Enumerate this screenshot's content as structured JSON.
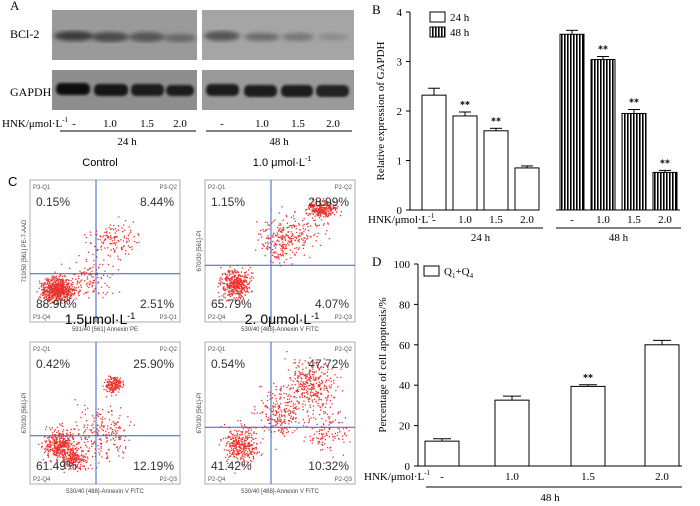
{
  "panelA": {
    "letter": "A",
    "bcl2_label": "BCl-2",
    "gapdh_label": "GAPDH",
    "hnk_label": "HNK/μmol·L",
    "hnk_sup": "-1",
    "lanes": [
      "-",
      "1.0",
      "1.5",
      "2.0"
    ],
    "group_24": "24 h",
    "group_48": "48 h"
  },
  "chart_data": [
    {
      "id": "B",
      "type": "bar",
      "letter": "B",
      "ylabel": "Relative expression of GAPDH",
      "ylim": [
        0,
        4
      ],
      "yticks": [
        "0",
        "1",
        "2",
        "3",
        "4"
      ],
      "xlabel_prefix": "HNK/μmol·L",
      "xlabel_sup": "-1",
      "categories": [
        "-",
        "1.0",
        "1.5",
        "2.0"
      ],
      "groups": [
        "24 h",
        "48 h"
      ],
      "legend": [
        "24 h",
        "48 h"
      ],
      "series": [
        {
          "name": "24 h",
          "values": [
            2.32,
            1.9,
            1.6,
            0.85
          ],
          "errors": [
            0.14,
            0.08,
            0.05,
            0.04
          ],
          "sig": [
            "",
            "**",
            "**",
            ""
          ]
        },
        {
          "name": "48 h",
          "values": [
            3.55,
            3.04,
            1.95,
            0.76
          ],
          "errors": [
            0.08,
            0.06,
            0.08,
            0.04
          ],
          "sig": [
            "",
            "**",
            "**",
            "**"
          ]
        }
      ]
    },
    {
      "id": "C",
      "type": "scatter",
      "letter": "C",
      "plots": [
        {
          "title": "Control",
          "q1": "0.15%",
          "q2": "8.44%",
          "q3": "2.51%",
          "q4": "88.90%",
          "tl": "P3-Q1",
          "tr": "P3-Q2",
          "bl": "P3-Q4",
          "br": "P3-Q1",
          "xlabel": "591/40 [561] Annexin PE",
          "ylabel": "710/50 [561] PE-7-AAD"
        },
        {
          "title": "1.0 μmol·L",
          "title_sup": "-1",
          "q1": "1.15%",
          "q2": "28.99%",
          "q3": "4.07%",
          "q4": "65.79%",
          "tl": "P2-Q1",
          "tr": "P2-Q2",
          "bl": "P2-Q4",
          "br": "P2-Q3",
          "xlabel": "530/40 [488]-Annexin V FITC",
          "ylabel": "670/30 [561]-PI"
        },
        {
          "title": "1.5μmol·L",
          "title_sup": "-1",
          "q1": "0.42%",
          "q2": "25.90%",
          "q3": "12.19%",
          "q4": "61.49%",
          "tl": "P2-Q1",
          "tr": "P2-Q2",
          "bl": "P2-Q4",
          "br": "P2-Q3",
          "xlabel": "530/40 [488]-Annexin V FITC",
          "ylabel": "670/30 [561]-PI"
        },
        {
          "title": "2. 0μmol·L",
          "title_sup": "-1",
          "q1": "0.54%",
          "q2": "47.72%",
          "q3": "10.32%",
          "q4": "41.42%",
          "tl": "P2-Q1",
          "tr": "P2-Q2",
          "bl": "P2-Q4",
          "br": "P2-Q3",
          "xlabel": "530/40 [488]-Annexin V FITC",
          "ylabel": "670/30 [561]-PI"
        }
      ]
    },
    {
      "id": "D",
      "type": "bar",
      "letter": "D",
      "ylabel": "Percentage of cell apoptosis/%",
      "ylim": [
        0,
        100
      ],
      "yticks": [
        "0",
        "20",
        "40",
        "60",
        "80",
        "100"
      ],
      "xlabel_prefix": "HNK/μmol·L",
      "xlabel_sup": "-1",
      "categories": [
        "-",
        "1.0",
        "1.5",
        "2.0"
      ],
      "group": "48 h",
      "legend": "Q",
      "legend_sub1": "1",
      "legend_mid": "+Q",
      "legend_sub2": "4",
      "values": [
        12.3,
        32.6,
        39.4,
        60.0
      ],
      "errors": [
        1.2,
        2.0,
        0.8,
        2.2
      ],
      "sig": [
        "",
        "",
        "**",
        ""
      ]
    }
  ]
}
